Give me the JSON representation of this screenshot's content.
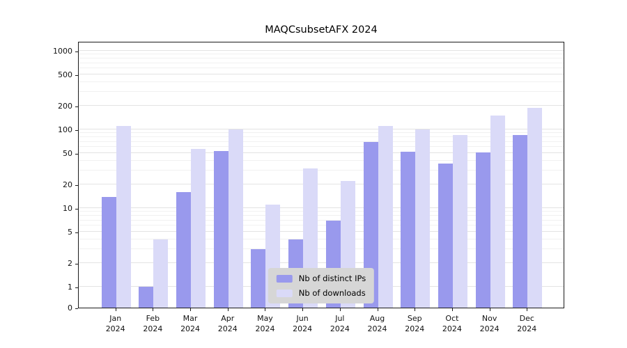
{
  "chart_data": {
    "type": "bar",
    "title": "MAQCsubsetAFX 2024",
    "categories": [
      "Jan 2024",
      "Feb 2024",
      "Mar 2024",
      "Apr 2024",
      "May 2024",
      "Jun 2024",
      "Jul 2024",
      "Aug 2024",
      "Sep 2024",
      "Oct 2024",
      "Nov 2024",
      "Dec 2024"
    ],
    "series": [
      {
        "name": "Nb of distinct IPs",
        "color": "#9999ed",
        "values": [
          14,
          1,
          16,
          53,
          3,
          4,
          7,
          70,
          52,
          37,
          51,
          85
        ]
      },
      {
        "name": "Nb of downloads",
        "color": "#dadaf8",
        "values": [
          110,
          4,
          57,
          100,
          11,
          32,
          22,
          110,
          100,
          85,
          150,
          190
        ]
      }
    ],
    "yscale": "symlog",
    "yticks": [
      0,
      1,
      2,
      5,
      10,
      20,
      50,
      100,
      200,
      500,
      1000
    ],
    "ylim": [
      0,
      1300
    ],
    "xlabel": "",
    "ylabel": "",
    "grid": true,
    "legend_position": "lower center"
  },
  "style": {
    "grid_major_color": "#e3e3e3",
    "grid_minor_color": "#f1f1f1",
    "axis_color": "#1a1a1a",
    "legend_bg": "#d6d6d6"
  }
}
